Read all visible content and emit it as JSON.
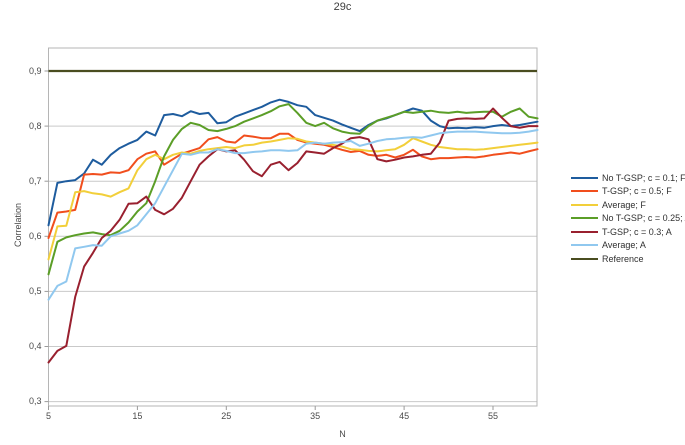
{
  "title": "29c",
  "chart_data": {
    "type": "line",
    "title": "29c",
    "xlabel": "N",
    "ylabel": "Correlation",
    "xlim": [
      5,
      60
    ],
    "ylim": [
      0.293,
      0.942
    ],
    "x_start": 5,
    "x_step": 1,
    "x_ticks": [
      5,
      15,
      25,
      35,
      45,
      55
    ],
    "x_tick_labels": [
      "5",
      "15",
      "25",
      "35",
      "45",
      "55"
    ],
    "y_ticks": [
      0.3,
      0.4,
      0.5,
      0.6,
      0.7,
      0.8,
      0.9
    ],
    "y_tick_labels": [
      "0,3",
      "0,4",
      "0,5",
      "0,6",
      "0,7",
      "0,8",
      "0,9"
    ],
    "grid": true,
    "legend_position": "right",
    "grid_color": "#c9c9c9",
    "axis_color": "#b5b5b5",
    "tick_color": "#9a9a9a",
    "text_color": "#4a4a4a",
    "series": [
      {
        "name": "No T-GSP; c = 0.1; F",
        "color": "#1e5c9e",
        "values": [
          0.62,
          0.697,
          0.7,
          0.702,
          0.714,
          0.739,
          0.73,
          0.748,
          0.76,
          0.768,
          0.775,
          0.79,
          0.783,
          0.82,
          0.822,
          0.818,
          0.827,
          0.822,
          0.824,
          0.805,
          0.807,
          0.817,
          0.823,
          0.829,
          0.835,
          0.843,
          0.848,
          0.844,
          0.838,
          0.835,
          0.82,
          0.815,
          0.81,
          0.803,
          0.797,
          0.791,
          0.802,
          0.81,
          0.814,
          0.82,
          0.826,
          0.832,
          0.828,
          0.81,
          0.8,
          0.796,
          0.797,
          0.796,
          0.798,
          0.797,
          0.8,
          0.802,
          0.8,
          0.802,
          0.805,
          0.808
        ]
      },
      {
        "name": "T-GSP; c = 0.5; F",
        "color": "#f14e1d",
        "values": [
          0.597,
          0.643,
          0.645,
          0.648,
          0.712,
          0.713,
          0.712,
          0.716,
          0.715,
          0.72,
          0.74,
          0.75,
          0.754,
          0.73,
          0.74,
          0.75,
          0.755,
          0.76,
          0.776,
          0.78,
          0.772,
          0.77,
          0.783,
          0.781,
          0.778,
          0.778,
          0.786,
          0.786,
          0.775,
          0.77,
          0.768,
          0.766,
          0.762,
          0.757,
          0.753,
          0.755,
          0.748,
          0.746,
          0.748,
          0.743,
          0.748,
          0.757,
          0.745,
          0.74,
          0.742,
          0.742,
          0.743,
          0.744,
          0.743,
          0.745,
          0.748,
          0.75,
          0.752,
          0.75,
          0.754,
          0.758
        ]
      },
      {
        "name": "Average; F",
        "color": "#f2cf3a",
        "values": [
          0.558,
          0.618,
          0.619,
          0.68,
          0.682,
          0.678,
          0.676,
          0.672,
          0.68,
          0.687,
          0.72,
          0.74,
          0.748,
          0.74,
          0.748,
          0.752,
          0.75,
          0.755,
          0.758,
          0.76,
          0.762,
          0.76,
          0.765,
          0.766,
          0.77,
          0.772,
          0.775,
          0.778,
          0.777,
          0.772,
          0.77,
          0.768,
          0.766,
          0.763,
          0.758,
          0.757,
          0.755,
          0.754,
          0.756,
          0.758,
          0.766,
          0.778,
          0.772,
          0.766,
          0.762,
          0.76,
          0.758,
          0.758,
          0.757,
          0.758,
          0.76,
          0.762,
          0.764,
          0.766,
          0.768,
          0.77
        ]
      },
      {
        "name": "No T-GSP; c = 0.25; A",
        "color": "#5b9e27",
        "values": [
          0.531,
          0.59,
          0.598,
          0.602,
          0.605,
          0.607,
          0.604,
          0.602,
          0.61,
          0.625,
          0.645,
          0.66,
          0.7,
          0.745,
          0.775,
          0.795,
          0.806,
          0.802,
          0.793,
          0.791,
          0.795,
          0.8,
          0.808,
          0.814,
          0.82,
          0.827,
          0.836,
          0.84,
          0.824,
          0.806,
          0.8,
          0.806,
          0.796,
          0.79,
          0.787,
          0.786,
          0.8,
          0.81,
          0.815,
          0.82,
          0.826,
          0.824,
          0.826,
          0.828,
          0.825,
          0.824,
          0.826,
          0.824,
          0.825,
          0.826,
          0.826,
          0.817,
          0.826,
          0.832,
          0.817,
          0.814
        ]
      },
      {
        "name": "T-GSP; c = 0.3; A",
        "color": "#99202f",
        "values": [
          0.371,
          0.392,
          0.401,
          0.49,
          0.545,
          0.57,
          0.597,
          0.61,
          0.63,
          0.659,
          0.66,
          0.672,
          0.648,
          0.64,
          0.65,
          0.67,
          0.7,
          0.73,
          0.745,
          0.758,
          0.754,
          0.756,
          0.739,
          0.718,
          0.709,
          0.73,
          0.735,
          0.72,
          0.733,
          0.754,
          0.752,
          0.75,
          0.76,
          0.768,
          0.778,
          0.78,
          0.776,
          0.74,
          0.736,
          0.739,
          0.743,
          0.745,
          0.748,
          0.75,
          0.77,
          0.81,
          0.813,
          0.814,
          0.813,
          0.814,
          0.832,
          0.815,
          0.8,
          0.797,
          0.8,
          0.8
        ]
      },
      {
        "name": "Average; A",
        "color": "#90c8ef",
        "values": [
          0.485,
          0.51,
          0.518,
          0.578,
          0.581,
          0.584,
          0.583,
          0.6,
          0.605,
          0.61,
          0.62,
          0.64,
          0.66,
          0.69,
          0.72,
          0.75,
          0.748,
          0.752,
          0.752,
          0.758,
          0.755,
          0.751,
          0.751,
          0.753,
          0.754,
          0.756,
          0.756,
          0.755,
          0.756,
          0.768,
          0.77,
          0.768,
          0.77,
          0.771,
          0.773,
          0.764,
          0.768,
          0.773,
          0.776,
          0.777,
          0.779,
          0.78,
          0.779,
          0.783,
          0.787,
          0.789,
          0.79,
          0.79,
          0.79,
          0.789,
          0.788,
          0.787,
          0.787,
          0.788,
          0.79,
          0.793
        ]
      },
      {
        "name": "Reference",
        "color": "#4a4d20",
        "constant": 0.9
      }
    ]
  }
}
